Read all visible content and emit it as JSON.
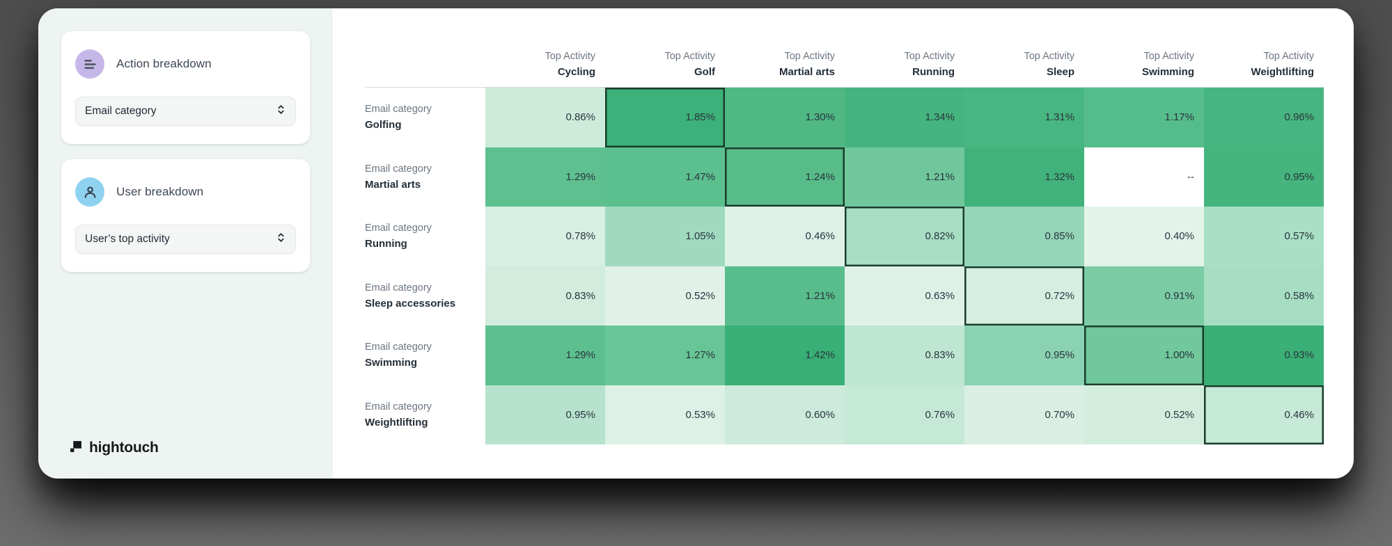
{
  "sidebar": {
    "cards": [
      {
        "title": "Action breakdown",
        "icon": "bars-icon",
        "dropdown_value": "Email category"
      },
      {
        "title": "User breakdown",
        "icon": "person-icon",
        "dropdown_value": "User’s top activity"
      }
    ],
    "logo_text": "hightouch"
  },
  "chart_data": {
    "type": "heatmap",
    "column_header_prefix": "Top Activity",
    "row_header_prefix": "Email category",
    "columns": [
      "Cycling",
      "Golf",
      "Martial arts",
      "Running",
      "Sleep",
      "Swimming",
      "Weightlifting"
    ],
    "rows": [
      "Golfing",
      "Martial arts",
      "Running",
      "Sleep accessories",
      "Swimming",
      "Weightlifting"
    ],
    "values": [
      [
        0.86,
        1.85,
        1.3,
        1.34,
        1.31,
        1.17,
        0.96
      ],
      [
        1.29,
        1.47,
        1.24,
        1.21,
        1.32,
        null,
        0.95
      ],
      [
        0.78,
        1.05,
        0.46,
        0.82,
        0.85,
        0.4,
        0.57
      ],
      [
        0.83,
        0.52,
        1.21,
        0.63,
        0.72,
        0.91,
        0.58
      ],
      [
        1.29,
        1.27,
        1.42,
        0.83,
        0.95,
        1.0,
        0.93
      ],
      [
        0.95,
        0.53,
        0.6,
        0.76,
        0.7,
        0.52,
        0.46
      ]
    ],
    "display": [
      [
        "0.86%",
        "1.85%",
        "1.30%",
        "1.34%",
        "1.31%",
        "1.17%",
        "0.96%"
      ],
      [
        "1.29%",
        "1.47%",
        "1.24%",
        "1.21%",
        "1.32%",
        "--",
        "0.95%"
      ],
      [
        "0.78%",
        "1.05%",
        "0.46%",
        "0.82%",
        "0.85%",
        "0.40%",
        "0.57%"
      ],
      [
        "0.83%",
        "0.52%",
        "1.21%",
        "0.63%",
        "0.72%",
        "0.91%",
        "0.58%"
      ],
      [
        "1.29%",
        "1.27%",
        "1.42%",
        "0.83%",
        "0.95%",
        "1.00%",
        "0.93%"
      ],
      [
        "0.95%",
        "0.53%",
        "0.60%",
        "0.76%",
        "0.70%",
        "0.52%",
        "0.46%"
      ]
    ],
    "cell_colors": [
      [
        "#cdebdb",
        "#3cb179",
        "#4fb883",
        "#46b47e",
        "#48b680",
        "#55bd8a",
        "#47b57f"
      ],
      [
        "#5fc08f",
        "#5cbf8e",
        "#58bc89",
        "#70c79c",
        "#42b27b",
        "#ffffff",
        "#45b47d"
      ],
      [
        "#d8efe3",
        "#9fdabf",
        "#ddf1e7",
        "#a8dec4",
        "#95d6b8",
        "#e3f3ea",
        "#a9dfc5"
      ],
      [
        "#d2ecde",
        "#e0f2e8",
        "#58bd8b",
        "#def1e7",
        "#d5eee1",
        "#7bcca5",
        "#a7dec3"
      ],
      [
        "#5dbf8e",
        "#68c596",
        "#38af75",
        "#bfe6d2",
        "#8ad2b1",
        "#70c89b",
        "#3bb076"
      ],
      [
        "#b7e3ce",
        "#def1e7",
        "#cdebdc",
        "#c6e9d7",
        "#d9efe4",
        "#d2edde",
        "#c7e9d7"
      ]
    ],
    "highlighted_cells": [
      [
        0,
        1
      ],
      [
        1,
        2
      ],
      [
        2,
        3
      ],
      [
        3,
        4
      ],
      [
        4,
        5
      ],
      [
        5,
        6
      ]
    ],
    "null_display": "--",
    "colors": {
      "min_color": "#e3f3ea",
      "max_color": "#3cb179",
      "highlight_border": "#1a3d2c",
      "null_cell_bg": "#ffffff",
      "accent_purple": "#c6b7e9",
      "accent_blue": "#8fd2ef",
      "sidebar_bg": "#eef4f1"
    },
    "legend_position": "none",
    "grid": false
  }
}
